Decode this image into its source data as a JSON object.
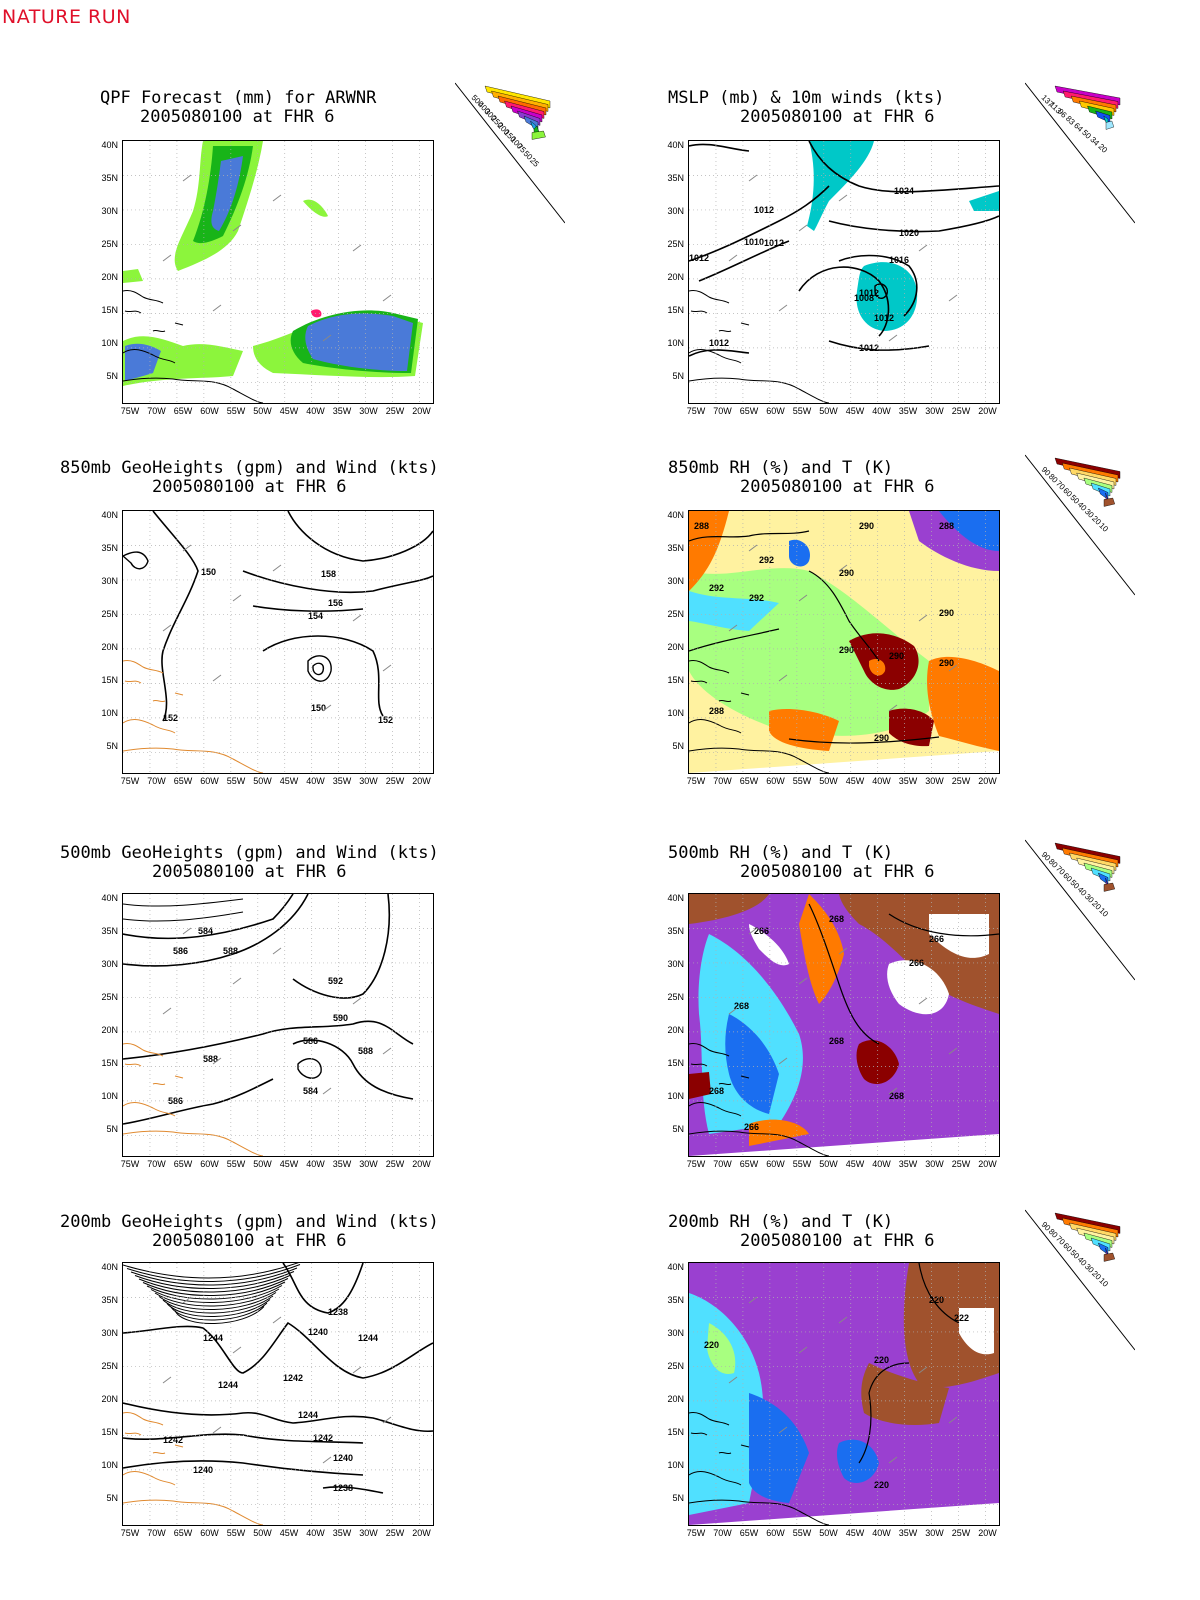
{
  "header": "NATURE RUN",
  "x_ticks": [
    "75W",
    "70W",
    "65W",
    "60W",
    "55W",
    "50W",
    "45W",
    "40W",
    "35W",
    "30W",
    "25W",
    "20W"
  ],
  "y_ticks": [
    "40N",
    "35N",
    "30N",
    "25N",
    "20N",
    "15N",
    "10N",
    "5N"
  ],
  "panels": [
    {
      "id": "qpf",
      "title1": "QPF Forecast (mm) for ARWNR",
      "title2": "2005080100 at FHR 6",
      "legend": [
        "500",
        "400",
        "300",
        "250",
        "200",
        "150",
        "100",
        "75",
        "50",
        "25"
      ],
      "legend_colors": [
        "#ffe600",
        "#ffb000",
        "#ff6a00",
        "#ff1a6e",
        "#c800c8",
        "#8a3ad0",
        "#4a7ad8",
        "#1fa0e0",
        "#18b418",
        "#8cf53c"
      ]
    },
    {
      "id": "mslp",
      "title1": "MSLP (mb) & 10m winds (kts)",
      "title2": "2005080100 at FHR 6",
      "legend": [
        "137",
        "113",
        "96",
        "83",
        "64",
        "50",
        "34",
        "20"
      ],
      "legend_colors": [
        "#c800c8",
        "#ff1a6e",
        "#ff7a00",
        "#ffc800",
        "#18b418",
        "#1450f0",
        "#00c8c8",
        "#a0e8ff"
      ],
      "contour_labels": [
        "1024",
        "1020",
        "1016",
        "1012",
        "1012",
        "1012",
        "1012",
        "1008",
        "1012",
        "1010",
        "1012",
        "1012"
      ]
    },
    {
      "id": "gh850",
      "title1": "850mb GeoHeights (gpm) and Wind (kts)",
      "title2": "2005080100 at FHR 6",
      "contour_labels": [
        "150",
        "158",
        "156",
        "154",
        "150",
        "152",
        "152"
      ]
    },
    {
      "id": "rh850",
      "title1": "850mb RH (%) and T (K)",
      "title2": "2005080100 at FHR 6",
      "legend": [
        "90",
        "80",
        "70",
        "60",
        "50",
        "40",
        "30",
        "20",
        "10"
      ],
      "legend_colors": [
        "#8b0000",
        "#ff7a00",
        "#ffd966",
        "#fff2a0",
        "#a8ff80",
        "#50e0ff",
        "#1a6ef0",
        "#9a40d0",
        "#a0522d"
      ],
      "contour_labels": [
        "288",
        "290",
        "292",
        "292",
        "290",
        "290",
        "288",
        "292",
        "290",
        "290",
        "288",
        "290",
        "290"
      ]
    },
    {
      "id": "gh500",
      "title1": "500mb GeoHeights (gpm) and Wind (kts)",
      "title2": "2005080100 at FHR 6",
      "contour_labels": [
        "584",
        "586",
        "588",
        "592",
        "590",
        "588",
        "586",
        "584",
        "588",
        "586"
      ]
    },
    {
      "id": "rh500",
      "title1": "500mb RH (%) and T (K)",
      "title2": "2005080100 at FHR 6",
      "legend": [
        "90",
        "80",
        "70",
        "60",
        "50",
        "40",
        "30",
        "20",
        "10"
      ],
      "legend_colors": [
        "#8b0000",
        "#ff7a00",
        "#ffd966",
        "#fff2a0",
        "#a8ff80",
        "#50e0ff",
        "#1a6ef0",
        "#9a40d0",
        "#a0522d"
      ],
      "contour_labels": [
        "268",
        "266",
        "266",
        "266",
        "268",
        "268",
        "268",
        "268",
        "266"
      ]
    },
    {
      "id": "gh200",
      "title1": "200mb GeoHeights (gpm) and Wind (kts)",
      "title2": "2005080100 at FHR 6",
      "contour_labels": [
        "1238",
        "1244",
        "1240",
        "1244",
        "1242",
        "1244",
        "1244",
        "1242",
        "1242",
        "1240",
        "1240",
        "1238"
      ]
    },
    {
      "id": "rh200",
      "title1": "200mb RH (%) and T (K)",
      "title2": "2005080100 at FHR 6",
      "legend": [
        "90",
        "80",
        "70",
        "60",
        "50",
        "40",
        "30",
        "20",
        "10"
      ],
      "legend_colors": [
        "#8b0000",
        "#ff7a00",
        "#ffd966",
        "#fff2a0",
        "#a8ff80",
        "#50e0ff",
        "#1a6ef0",
        "#9a40d0",
        "#a0522d"
      ],
      "contour_labels": [
        "220",
        "222",
        "220",
        "220",
        "220"
      ]
    }
  ]
}
